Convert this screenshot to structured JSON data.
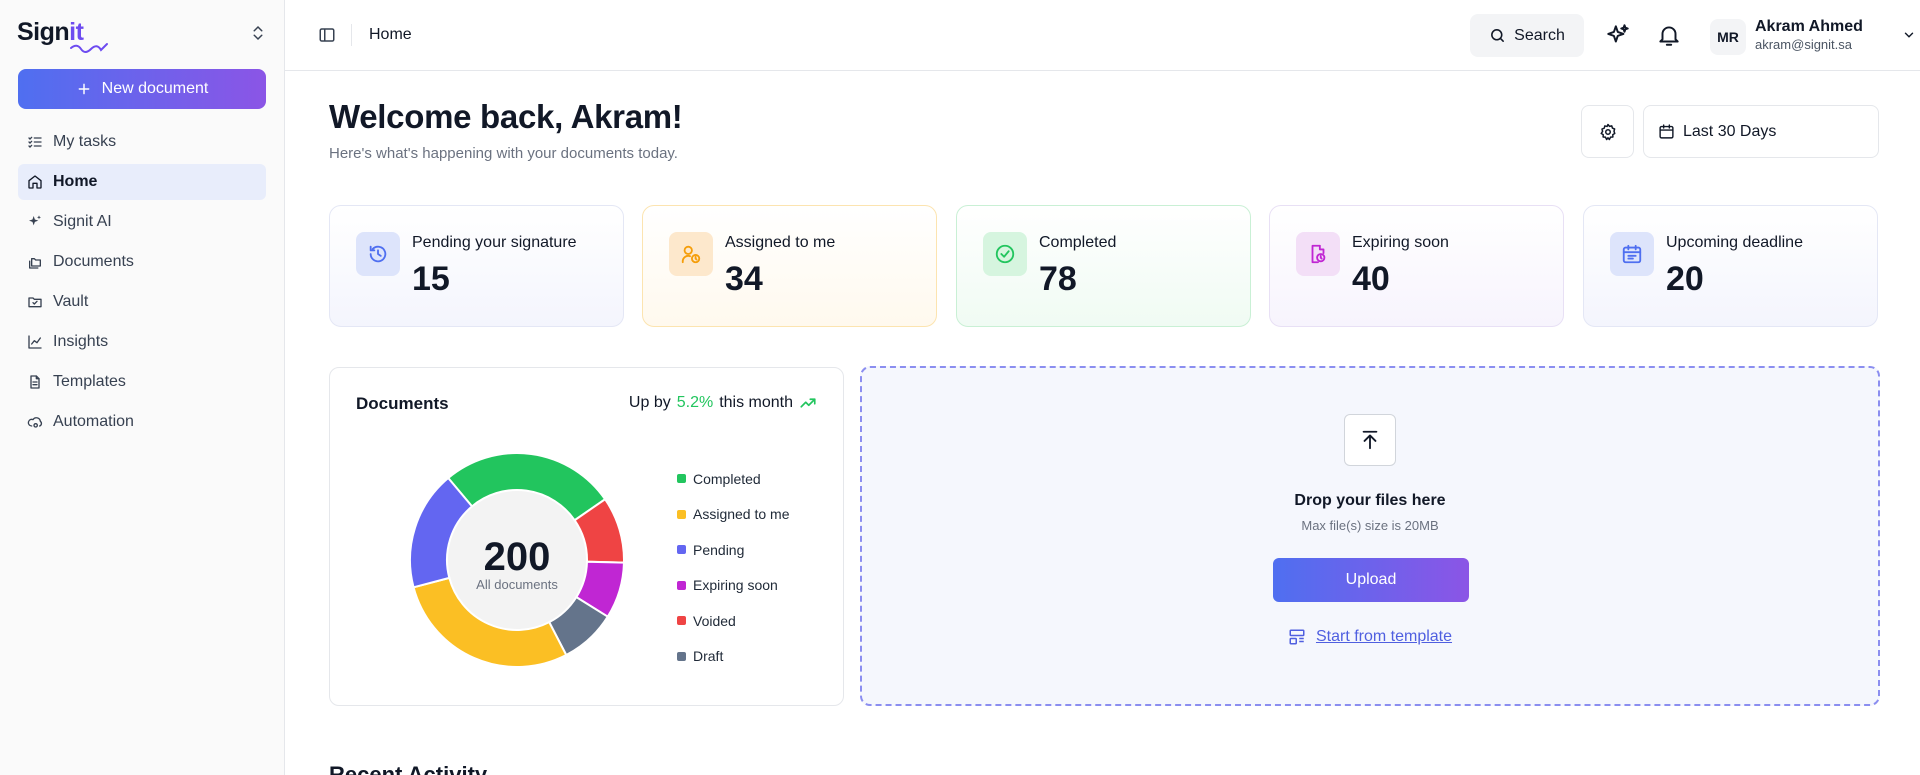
{
  "sidebar": {
    "logo_text": "Sign",
    "logo_accent": "it",
    "new_document_label": "New document",
    "items": [
      {
        "label": "My tasks",
        "icon": "list-checks-icon"
      },
      {
        "label": "Home",
        "icon": "home-icon",
        "active": true
      },
      {
        "label": "Signit AI",
        "icon": "sparkles-icon"
      },
      {
        "label": "Documents",
        "icon": "folders-icon"
      },
      {
        "label": "Vault",
        "icon": "folder-check-icon"
      },
      {
        "label": "Insights",
        "icon": "line-chart-icon"
      },
      {
        "label": "Templates",
        "icon": "file-text-icon"
      },
      {
        "label": "Automation",
        "icon": "cloud-cog-icon"
      }
    ]
  },
  "topbar": {
    "breadcrumb": "Home",
    "search_label": "Search",
    "user": {
      "initials": "MR",
      "name": "Akram Ahmed",
      "email": "akram@signit.sa"
    }
  },
  "header": {
    "title": "Welcome back, Akram!",
    "subtitle": "Here's what's happening with your documents today.",
    "date_range": "Last 30 Days"
  },
  "stats": [
    {
      "label": "Pending your signature",
      "value": "15",
      "icon": "clock-rotate-icon",
      "color": "#4f6ff0"
    },
    {
      "label": "Assigned to me",
      "value": "34",
      "icon": "user-clock-icon",
      "color": "#f59e0b"
    },
    {
      "label": "Completed",
      "value": "78",
      "icon": "check-circle-icon",
      "color": "#22c55e"
    },
    {
      "label": "Expiring soon",
      "value": "40",
      "icon": "file-clock-icon",
      "color": "#c026d3"
    },
    {
      "label": "Upcoming deadline",
      "value": "20",
      "icon": "calendar-icon",
      "color": "#4f6ff0"
    }
  ],
  "documents_card": {
    "title": "Documents",
    "trend_prefix": "Up by",
    "trend_pct": "5.2%",
    "trend_suffix": "this month",
    "total": "200",
    "total_label": "All documents"
  },
  "chart_data": {
    "type": "pie",
    "categories": [
      "Completed",
      "Assigned to me",
      "Pending",
      "Expiring soon",
      "Voided",
      "Draft"
    ],
    "values": [
      53,
      57,
      36,
      17,
      20,
      17
    ],
    "colors": [
      "#22c55e",
      "#fbbf24",
      "#6366f1",
      "#c026d3",
      "#ef4444",
      "#64748b"
    ],
    "legend_position": "right",
    "legend_order": [
      "Completed",
      "Assigned to me",
      "Pending",
      "Expiring soon",
      "Voided",
      "Draft"
    ]
  },
  "dropzone": {
    "title": "Drop your files here",
    "subtitle": "Max file(s) size is 20MB",
    "upload_label": "Upload",
    "template_link": "Start from template"
  },
  "recent_activity": {
    "title": "Recent Activity"
  }
}
